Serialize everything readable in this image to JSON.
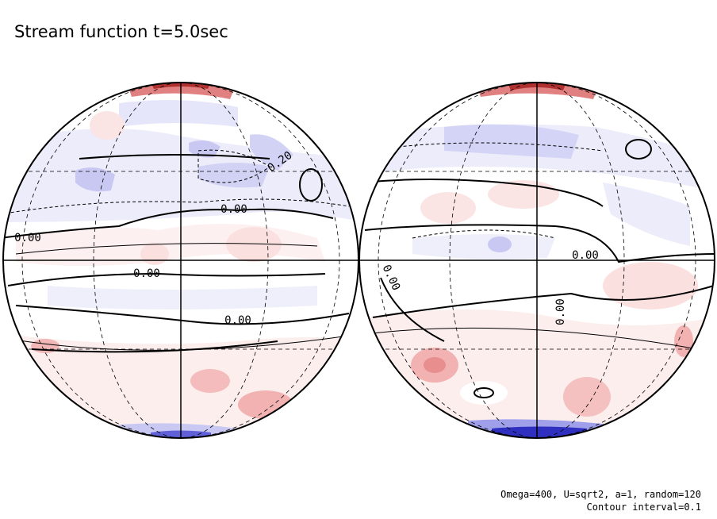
{
  "title": "Stream function t=5.0sec",
  "left_globe": {
    "contour_labels": [
      "0.20",
      "0.00",
      "0.00",
      "0.00",
      "0.00"
    ]
  },
  "right_globe": {
    "contour_labels": [
      "0.00",
      "0.00",
      "0.00"
    ]
  },
  "footer": [
    "Omega=400, U=sqrt2, a=1, random=120",
    "Contour interval=0.1"
  ]
}
